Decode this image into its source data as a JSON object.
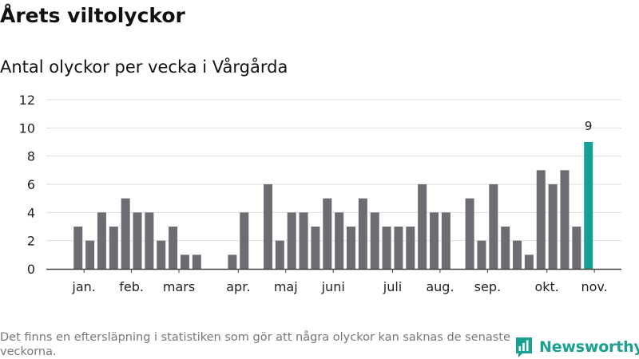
{
  "header": {
    "title": "Årets viltolyckor",
    "subtitle": "Antal olyckor per vecka i Vårgårda"
  },
  "footer": {
    "note": "Det finns en eftersläpning i statistiken som gör att några olyckor kan saknas de senaste veckorna.",
    "brand": "Newsworthy"
  },
  "colors": {
    "bar": "#6d6c72",
    "highlight": "#13a197",
    "grid": "#dddddd",
    "axis": "#444444",
    "brand": "#1a9f93"
  },
  "chart_data": {
    "type": "bar",
    "title": "Antal olyckor per vecka i Vårgårda",
    "xlabel": "",
    "ylabel": "",
    "ylim": [
      0,
      12
    ],
    "yticks": [
      0,
      2,
      4,
      6,
      8,
      10,
      12
    ],
    "grid": true,
    "weeks": [
      1,
      2,
      3,
      4,
      5,
      6,
      7,
      8,
      9,
      10,
      11,
      12,
      13,
      14,
      15,
      16,
      17,
      18,
      19,
      20,
      21,
      22,
      23,
      24,
      25,
      26,
      27,
      28,
      29,
      30,
      31,
      32,
      33,
      34,
      35,
      36,
      37,
      38,
      39,
      40,
      41,
      42,
      43,
      44,
      45,
      46
    ],
    "values": [
      0,
      0,
      3,
      2,
      4,
      3,
      5,
      4,
      4,
      2,
      3,
      1,
      1,
      0,
      0,
      1,
      4,
      0,
      6,
      2,
      4,
      4,
      3,
      5,
      4,
      3,
      5,
      4,
      3,
      3,
      3,
      6,
      4,
      4,
      0,
      5,
      2,
      6,
      3,
      2,
      1,
      7,
      6,
      7,
      3,
      9
    ],
    "month_labels": [
      {
        "label": "jan.",
        "week": 3.5
      },
      {
        "label": "feb.",
        "week": 7.5
      },
      {
        "label": "mars",
        "week": 11.5
      },
      {
        "label": "apr.",
        "week": 16.5
      },
      {
        "label": "maj",
        "week": 20.5
      },
      {
        "label": "juni",
        "week": 24.5
      },
      {
        "label": "juli",
        "week": 29.5
      },
      {
        "label": "aug.",
        "week": 33.5
      },
      {
        "label": "sep.",
        "week": 37.5
      },
      {
        "label": "okt.",
        "week": 42.5
      },
      {
        "label": "nov.",
        "week": 46.5
      }
    ],
    "highlight_week": 46,
    "annotations": [
      {
        "week": 46,
        "text": "9"
      }
    ]
  }
}
